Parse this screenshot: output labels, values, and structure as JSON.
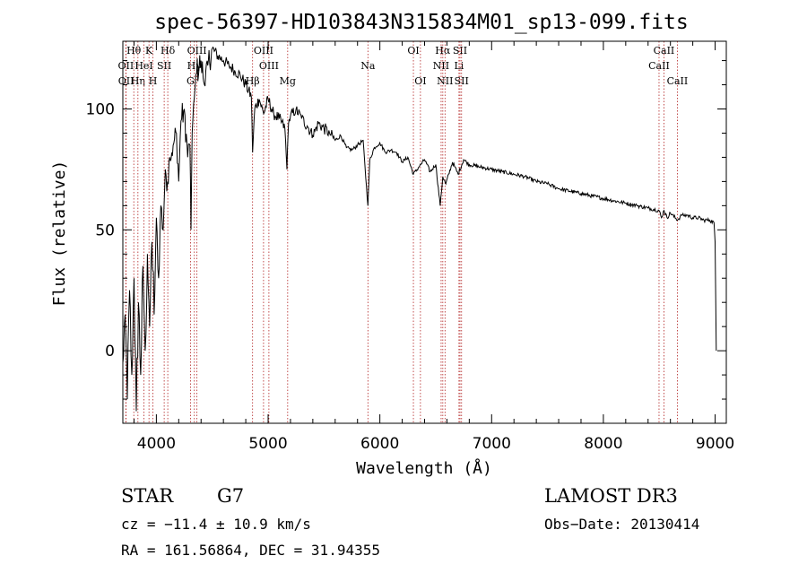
{
  "chart_data": {
    "type": "line",
    "title": "spec-56397-HD103843N315834M01_sp13-099.fits",
    "xlabel": "Wavelength (Å)",
    "ylabel": "Flux (relative)",
    "xlim": [
      3700,
      9100
    ],
    "ylim": [
      -30,
      128
    ],
    "x_ticks": [
      4000,
      5000,
      6000,
      7000,
      8000,
      9000
    ],
    "y_ticks": [
      0,
      50,
      100
    ],
    "series": [
      {
        "name": "spectrum",
        "x": [
          3700,
          3720,
          3740,
          3760,
          3780,
          3800,
          3820,
          3840,
          3860,
          3880,
          3900,
          3920,
          3940,
          3960,
          3980,
          4000,
          4020,
          4040,
          4060,
          4080,
          4100,
          4120,
          4150,
          4180,
          4200,
          4220,
          4250,
          4280,
          4300,
          4310,
          4320,
          4340,
          4360,
          4400,
          4430,
          4460,
          4500,
          4550,
          4600,
          4650,
          4700,
          4750,
          4800,
          4850,
          4861,
          4880,
          4920,
          4960,
          5000,
          5050,
          5100,
          5150,
          5168,
          5183,
          5200,
          5250,
          5300,
          5350,
          5400,
          5450,
          5500,
          5550,
          5600,
          5650,
          5700,
          5750,
          5800,
          5850,
          5880,
          5893,
          5910,
          5950,
          6000,
          6050,
          6100,
          6150,
          6200,
          6250,
          6300,
          6350,
          6400,
          6450,
          6500,
          6540,
          6563,
          6590,
          6650,
          6700,
          6750,
          6800,
          6900,
          7000,
          7100,
          7200,
          7300,
          7400,
          7500,
          7600,
          7700,
          7800,
          7900,
          8000,
          8100,
          8200,
          8300,
          8400,
          8498,
          8520,
          8542,
          8570,
          8600,
          8662,
          8700,
          8750,
          8800,
          8850,
          8900,
          8950,
          8990,
          9000,
          9010
        ],
        "y": [
          -5,
          15,
          -20,
          25,
          -10,
          30,
          -25,
          20,
          -10,
          35,
          0,
          40,
          10,
          45,
          15,
          55,
          30,
          60,
          50,
          75,
          70,
          80,
          85,
          90,
          70,
          95,
          100,
          80,
          85,
          50,
          90,
          105,
          115,
          120,
          110,
          118,
          125,
          122,
          120,
          118,
          116,
          114,
          110,
          105,
          82,
          100,
          104,
          98,
          104,
          98,
          96,
          92,
          75,
          94,
          97,
          100,
          96,
          93,
          89,
          94,
          92,
          90,
          87,
          89,
          84,
          83,
          85,
          87,
          68,
          60,
          79,
          84,
          86,
          82,
          83,
          82,
          78,
          80,
          73,
          76,
          79,
          74,
          77,
          60,
          72,
          69,
          78,
          73,
          79,
          77,
          76,
          75,
          74,
          73,
          72,
          70,
          69,
          67,
          66,
          65,
          64,
          63,
          62,
          61,
          60,
          59,
          58,
          55,
          58,
          55,
          57,
          54,
          56,
          56,
          55,
          55,
          54,
          54,
          53,
          45,
          0
        ]
      }
    ],
    "spectral_lines": [
      {
        "name": "Hθ",
        "wavelength": 3798,
        "row": 1
      },
      {
        "name": "OII",
        "wavelength": 3727,
        "row": 2
      },
      {
        "name": "OII",
        "wavelength": 3729,
        "row": 3
      },
      {
        "name": "Hη",
        "wavelength": 3835,
        "row": 3
      },
      {
        "name": "HeI",
        "wavelength": 3889,
        "row": 2
      },
      {
        "name": "K",
        "wavelength": 3934,
        "row": 1
      },
      {
        "name": "H",
        "wavelength": 3969,
        "row": 3
      },
      {
        "name": "SII",
        "wavelength": 4070,
        "row": 2
      },
      {
        "name": "Hδ",
        "wavelength": 4102,
        "row": 1
      },
      {
        "name": "OIII",
        "wavelength": 4363,
        "row": 1
      },
      {
        "name": "Hγ",
        "wavelength": 4340,
        "row": 2
      },
      {
        "name": "G",
        "wavelength": 4305,
        "row": 3
      },
      {
        "name": "OIII",
        "wavelength": 4959,
        "row": 1
      },
      {
        "name": "OIII",
        "wavelength": 5007,
        "row": 2
      },
      {
        "name": "Hβ",
        "wavelength": 4861,
        "row": 3
      },
      {
        "name": "Mg",
        "wavelength": 5175,
        "row": 3
      },
      {
        "name": "Na",
        "wavelength": 5893,
        "row": 2
      },
      {
        "name": "OI",
        "wavelength": 6300,
        "row": 1
      },
      {
        "name": "OI",
        "wavelength": 6363,
        "row": 3
      },
      {
        "name": "Hα",
        "wavelength": 6563,
        "row": 1
      },
      {
        "name": "NII",
        "wavelength": 6548,
        "row": 2
      },
      {
        "name": "NII",
        "wavelength": 6583,
        "row": 3
      },
      {
        "name": "SII",
        "wavelength": 6717,
        "row": 1
      },
      {
        "name": "Li",
        "wavelength": 6708,
        "row": 2
      },
      {
        "name": "SII",
        "wavelength": 6731,
        "row": 3
      },
      {
        "name": "CaII",
        "wavelength": 8542,
        "row": 1
      },
      {
        "name": "CaII",
        "wavelength": 8498,
        "row": 2
      },
      {
        "name": "CaII",
        "wavelength": 8662,
        "row": 3
      }
    ]
  },
  "info": {
    "object_class": "STAR",
    "subclass": "G7",
    "redshift_text": "cz = −11.4 ± 10.9 km/s",
    "coordinates_text": "RA = 161.56864, DEC =  31.94355",
    "survey": "LAMOST DR3",
    "obs_date_text": "Obs−Date: 20130414"
  },
  "colors": {
    "spectrum": "#000000",
    "line_marker": "#b22222",
    "axes": "#000000",
    "background": "#ffffff"
  }
}
